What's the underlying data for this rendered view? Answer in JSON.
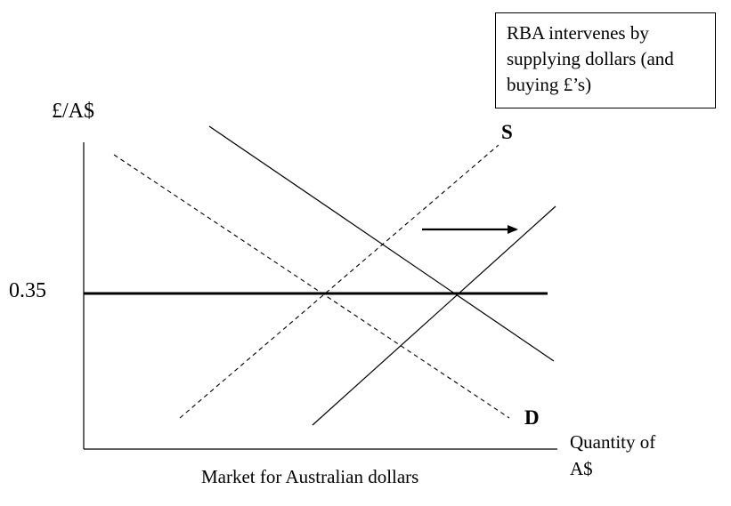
{
  "note": {
    "lines": [
      "RBA intervenes by",
      "supplying dollars (and",
      "buying £’s)"
    ]
  },
  "axes": {
    "y_label": "£/A$",
    "x_label_line1": "Quantity of",
    "x_label_line2": "A$"
  },
  "price_level": "0.35",
  "curves": {
    "supply_label": "S",
    "demand_label": "D"
  },
  "caption": "Market for Australian dollars"
}
